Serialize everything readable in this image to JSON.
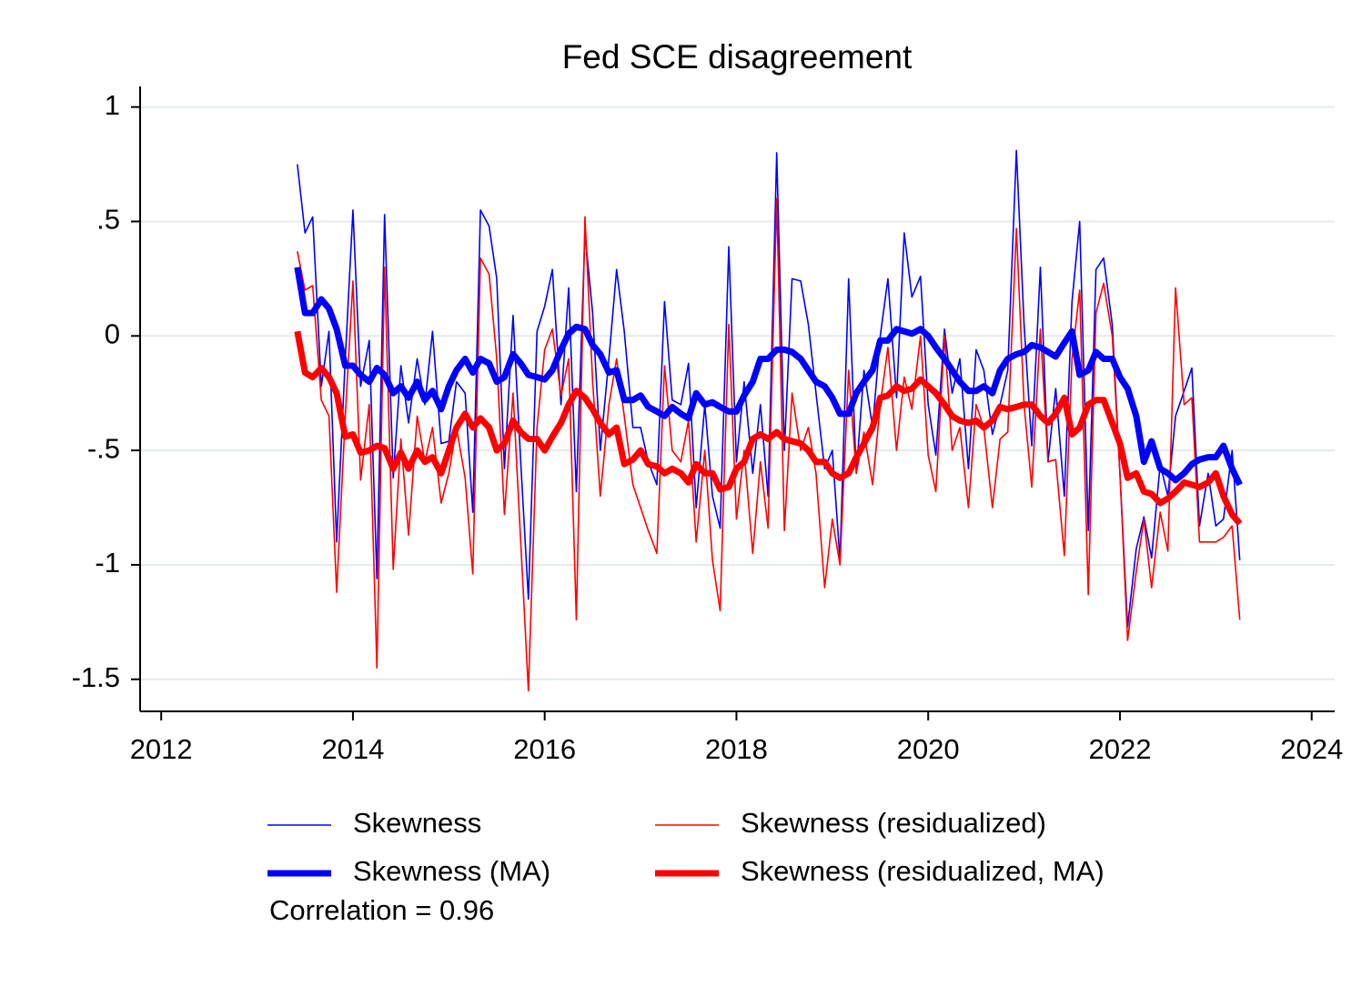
{
  "chart_data": {
    "type": "line",
    "title": "Fed SCE disagreement",
    "x": [
      2013.42,
      2013.5,
      2013.58,
      2013.67,
      2013.75,
      2013.83,
      2013.92,
      2014.0,
      2014.08,
      2014.17,
      2014.25,
      2014.33,
      2014.42,
      2014.5,
      2014.58,
      2014.67,
      2014.75,
      2014.83,
      2014.92,
      2015.0,
      2015.08,
      2015.17,
      2015.25,
      2015.33,
      2015.42,
      2015.5,
      2015.58,
      2015.67,
      2015.75,
      2015.83,
      2015.92,
      2016.0,
      2016.08,
      2016.17,
      2016.25,
      2016.33,
      2016.42,
      2016.5,
      2016.58,
      2016.67,
      2016.75,
      2016.83,
      2016.92,
      2017.0,
      2017.08,
      2017.17,
      2017.25,
      2017.33,
      2017.42,
      2017.5,
      2017.58,
      2017.67,
      2017.75,
      2017.83,
      2017.92,
      2018.0,
      2018.08,
      2018.17,
      2018.25,
      2018.33,
      2018.42,
      2018.5,
      2018.58,
      2018.67,
      2018.75,
      2018.83,
      2018.92,
      2019.0,
      2019.08,
      2019.17,
      2019.25,
      2019.33,
      2019.42,
      2019.5,
      2019.58,
      2019.67,
      2019.75,
      2019.83,
      2019.92,
      2020.0,
      2020.08,
      2020.17,
      2020.25,
      2020.33,
      2020.42,
      2020.5,
      2020.58,
      2020.67,
      2020.75,
      2020.83,
      2020.92,
      2021.0,
      2021.08,
      2021.17,
      2021.25,
      2021.33,
      2021.42,
      2021.5,
      2021.58,
      2021.67,
      2021.75,
      2021.83,
      2021.92,
      2022.0,
      2022.08,
      2022.17,
      2022.25,
      2022.33,
      2022.42,
      2022.5,
      2022.58,
      2022.67,
      2022.75,
      2022.83,
      2022.92,
      2023.0,
      2023.08,
      2023.17,
      2023.25
    ],
    "series": [
      {
        "name": "Skewness",
        "color": "#0000ff",
        "width": 1.6,
        "values": [
          0.75,
          0.45,
          0.52,
          -0.22,
          0.02,
          -0.9,
          -0.1,
          0.55,
          -0.22,
          -0.02,
          -1.06,
          0.53,
          -0.62,
          -0.13,
          -0.38,
          -0.1,
          -0.3,
          0.02,
          -0.47,
          -0.46,
          -0.2,
          -0.25,
          -0.77,
          0.55,
          0.48,
          0.25,
          -0.58,
          0.09,
          -0.55,
          -1.15,
          0.02,
          0.13,
          0.29,
          -0.3,
          0.21,
          -0.68,
          0.45,
          0.1,
          -0.5,
          -0.1,
          0.29,
          0.02,
          -0.4,
          -0.4,
          -0.55,
          -0.65,
          0.15,
          -0.28,
          -0.3,
          -0.12,
          -0.75,
          -0.3,
          -0.7,
          -0.84,
          0.39,
          -0.55,
          -0.2,
          -0.6,
          -0.3,
          -0.7,
          0.8,
          -0.5,
          0.25,
          0.24,
          0.05,
          -0.25,
          -0.58,
          -0.5,
          -0.98,
          0.25,
          -0.6,
          -0.15,
          -0.4,
          0.0,
          0.25,
          -0.27,
          0.45,
          0.17,
          0.26,
          -0.3,
          -0.52,
          0.03,
          -0.25,
          -0.1,
          -0.58,
          -0.06,
          -0.15,
          -0.43,
          -0.3,
          -0.15,
          0.81,
          0.05,
          -0.48,
          0.3,
          -0.55,
          -0.23,
          -0.7,
          0.15,
          0.5,
          -0.85,
          0.29,
          0.34,
          0.05,
          -0.6,
          -1.27,
          -0.93,
          -0.79,
          -0.97,
          -0.56,
          -0.7,
          -0.35,
          -0.24,
          -0.14,
          -0.83,
          -0.6,
          -0.83,
          -0.8,
          -0.5,
          -0.98
        ]
      },
      {
        "name": "Skewness (residualized)",
        "color": "#ff0000",
        "width": 1.6,
        "values": [
          0.37,
          0.2,
          0.22,
          -0.28,
          -0.35,
          -1.12,
          -0.35,
          0.24,
          -0.63,
          -0.3,
          -1.45,
          0.3,
          -1.02,
          -0.45,
          -0.87,
          -0.35,
          -0.55,
          -0.4,
          -0.73,
          -0.6,
          -0.4,
          -0.62,
          -1.04,
          0.34,
          0.27,
          -0.1,
          -0.78,
          -0.25,
          -0.9,
          -1.55,
          -0.4,
          -0.06,
          0.03,
          -0.26,
          -0.1,
          -1.24,
          0.52,
          -0.2,
          -0.7,
          -0.3,
          -0.1,
          -0.35,
          -0.65,
          -0.75,
          -0.85,
          -0.95,
          -0.13,
          -0.5,
          -0.55,
          -0.37,
          -0.9,
          -0.5,
          -0.98,
          -1.2,
          0.05,
          -0.8,
          -0.5,
          -0.95,
          -0.55,
          -0.84,
          0.6,
          -0.85,
          -0.25,
          -0.5,
          -0.4,
          -0.6,
          -1.1,
          -0.8,
          -1.0,
          -0.15,
          -0.6,
          -0.42,
          -0.65,
          -0.3,
          -0.05,
          -0.5,
          -0.18,
          -0.32,
          0.0,
          -0.52,
          -0.68,
          0.0,
          -0.5,
          -0.4,
          -0.75,
          -0.3,
          -0.4,
          -0.75,
          -0.45,
          -0.42,
          0.47,
          -0.3,
          -0.66,
          0.03,
          -0.55,
          -0.54,
          -0.96,
          -0.1,
          0.2,
          -1.13,
          0.1,
          0.23,
          0.0,
          -0.6,
          -1.33,
          -1.03,
          -0.8,
          -1.1,
          -0.77,
          -0.94,
          0.21,
          -0.3,
          -0.27,
          -0.9,
          -0.9,
          -0.9,
          -0.88,
          -0.83,
          -1.24
        ]
      },
      {
        "name": "Skewness (MA)",
        "color": "#0000ff",
        "width": 7,
        "values": [
          0.3,
          0.1,
          0.1,
          0.16,
          0.12,
          0.03,
          -0.13,
          -0.13,
          -0.17,
          -0.2,
          -0.14,
          -0.17,
          -0.25,
          -0.22,
          -0.27,
          -0.2,
          -0.28,
          -0.24,
          -0.32,
          -0.22,
          -0.15,
          -0.1,
          -0.16,
          -0.1,
          -0.12,
          -0.2,
          -0.18,
          -0.08,
          -0.12,
          -0.17,
          -0.18,
          -0.19,
          -0.15,
          -0.06,
          0.01,
          0.04,
          0.03,
          -0.04,
          -0.08,
          -0.16,
          -0.15,
          -0.28,
          -0.28,
          -0.26,
          -0.31,
          -0.33,
          -0.35,
          -0.31,
          -0.34,
          -0.36,
          -0.25,
          -0.3,
          -0.29,
          -0.31,
          -0.33,
          -0.33,
          -0.26,
          -0.2,
          -0.1,
          -0.1,
          -0.06,
          -0.06,
          -0.07,
          -0.1,
          -0.15,
          -0.2,
          -0.22,
          -0.27,
          -0.34,
          -0.34,
          -0.25,
          -0.2,
          -0.15,
          -0.02,
          -0.02,
          0.03,
          0.02,
          0.01,
          0.03,
          0.0,
          -0.05,
          -0.1,
          -0.15,
          -0.2,
          -0.24,
          -0.24,
          -0.22,
          -0.25,
          -0.15,
          -0.1,
          -0.08,
          -0.07,
          -0.04,
          -0.05,
          -0.07,
          -0.09,
          -0.03,
          0.02,
          -0.17,
          -0.15,
          -0.07,
          -0.1,
          -0.1,
          -0.18,
          -0.23,
          -0.35,
          -0.55,
          -0.46,
          -0.58,
          -0.6,
          -0.63,
          -0.6,
          -0.56,
          -0.54,
          -0.53,
          -0.53,
          -0.48,
          -0.58,
          -0.65
        ]
      },
      {
        "name": "Skewness (residualized, MA)",
        "color": "#ff0000",
        "width": 7,
        "values": [
          0.02,
          -0.16,
          -0.18,
          -0.14,
          -0.18,
          -0.25,
          -0.44,
          -0.43,
          -0.51,
          -0.5,
          -0.48,
          -0.49,
          -0.58,
          -0.51,
          -0.58,
          -0.5,
          -0.55,
          -0.53,
          -0.6,
          -0.5,
          -0.4,
          -0.34,
          -0.4,
          -0.36,
          -0.4,
          -0.5,
          -0.47,
          -0.37,
          -0.42,
          -0.45,
          -0.45,
          -0.5,
          -0.44,
          -0.38,
          -0.3,
          -0.24,
          -0.27,
          -0.32,
          -0.38,
          -0.43,
          -0.4,
          -0.56,
          -0.54,
          -0.5,
          -0.56,
          -0.57,
          -0.6,
          -0.58,
          -0.6,
          -0.64,
          -0.56,
          -0.6,
          -0.6,
          -0.67,
          -0.66,
          -0.58,
          -0.55,
          -0.45,
          -0.43,
          -0.45,
          -0.42,
          -0.45,
          -0.46,
          -0.47,
          -0.5,
          -0.55,
          -0.55,
          -0.6,
          -0.62,
          -0.6,
          -0.53,
          -0.47,
          -0.4,
          -0.27,
          -0.26,
          -0.22,
          -0.24,
          -0.23,
          -0.19,
          -0.22,
          -0.25,
          -0.3,
          -0.35,
          -0.37,
          -0.38,
          -0.37,
          -0.4,
          -0.37,
          -0.31,
          -0.32,
          -0.31,
          -0.3,
          -0.3,
          -0.35,
          -0.38,
          -0.34,
          -0.27,
          -0.43,
          -0.4,
          -0.3,
          -0.28,
          -0.28,
          -0.38,
          -0.47,
          -0.62,
          -0.6,
          -0.68,
          -0.69,
          -0.73,
          -0.71,
          -0.68,
          -0.64,
          -0.65,
          -0.66,
          -0.64,
          -0.6,
          -0.7,
          -0.78,
          -0.82
        ]
      }
    ],
    "xlim": [
      2011.78,
      2024.24
    ],
    "xticks": [
      2012,
      2014,
      2016,
      2018,
      2020,
      2022,
      2024
    ],
    "ylim": [
      -1.64,
      1.09
    ],
    "yticks": [
      1,
      {
        "value": 0.5,
        "label": ".5"
      },
      0,
      {
        "value": -0.5,
        "label": "-.5"
      },
      -1,
      -1.5
    ],
    "grid": true,
    "legend": "bottom",
    "annotation": "Correlation = 0.96"
  }
}
